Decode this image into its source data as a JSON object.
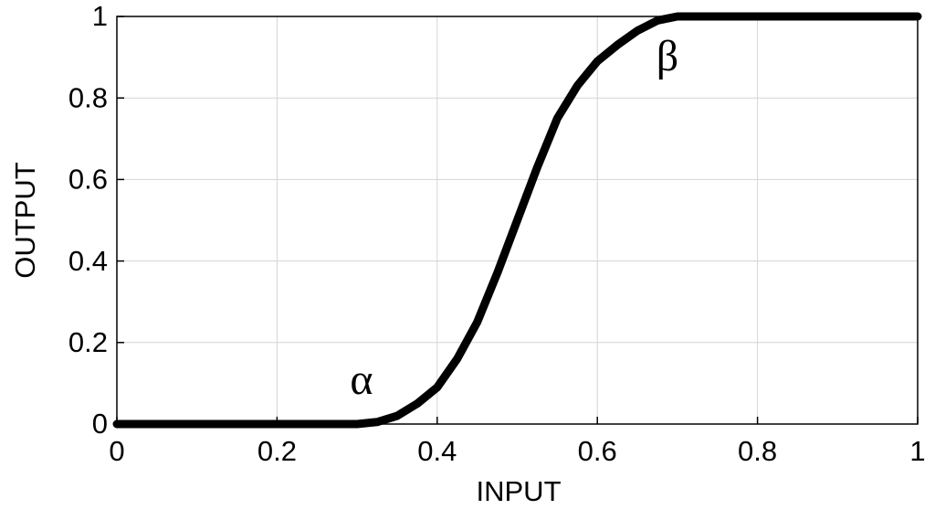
{
  "chart_data": {
    "type": "line",
    "x_label": "INPUT",
    "y_label": "OUTPUT",
    "annotations": [
      "α",
      "β"
    ],
    "x": [
      0,
      0.3,
      0.325,
      0.35,
      0.375,
      0.4,
      0.425,
      0.45,
      0.475,
      0.5,
      0.525,
      0.55,
      0.575,
      0.6,
      0.625,
      0.65,
      0.675,
      0.7,
      1
    ],
    "series": [
      {
        "color": "#000000",
        "values": [
          0,
          0,
          0.005,
          0.02,
          0.05,
          0.09,
          0.16,
          0.25,
          0.37,
          0.5,
          0.63,
          0.75,
          0.83,
          0.89,
          0.93,
          0.965,
          0.99,
          1,
          1
        ]
      }
    ],
    "xlim": [
      0,
      1
    ],
    "ylim": [
      0,
      1
    ],
    "xticks": [
      0,
      0.2,
      0.4,
      0.6,
      0.8,
      1
    ],
    "yticks": [
      0,
      0.2,
      0.4,
      0.6,
      0.8,
      1
    ],
    "grid": true
  }
}
